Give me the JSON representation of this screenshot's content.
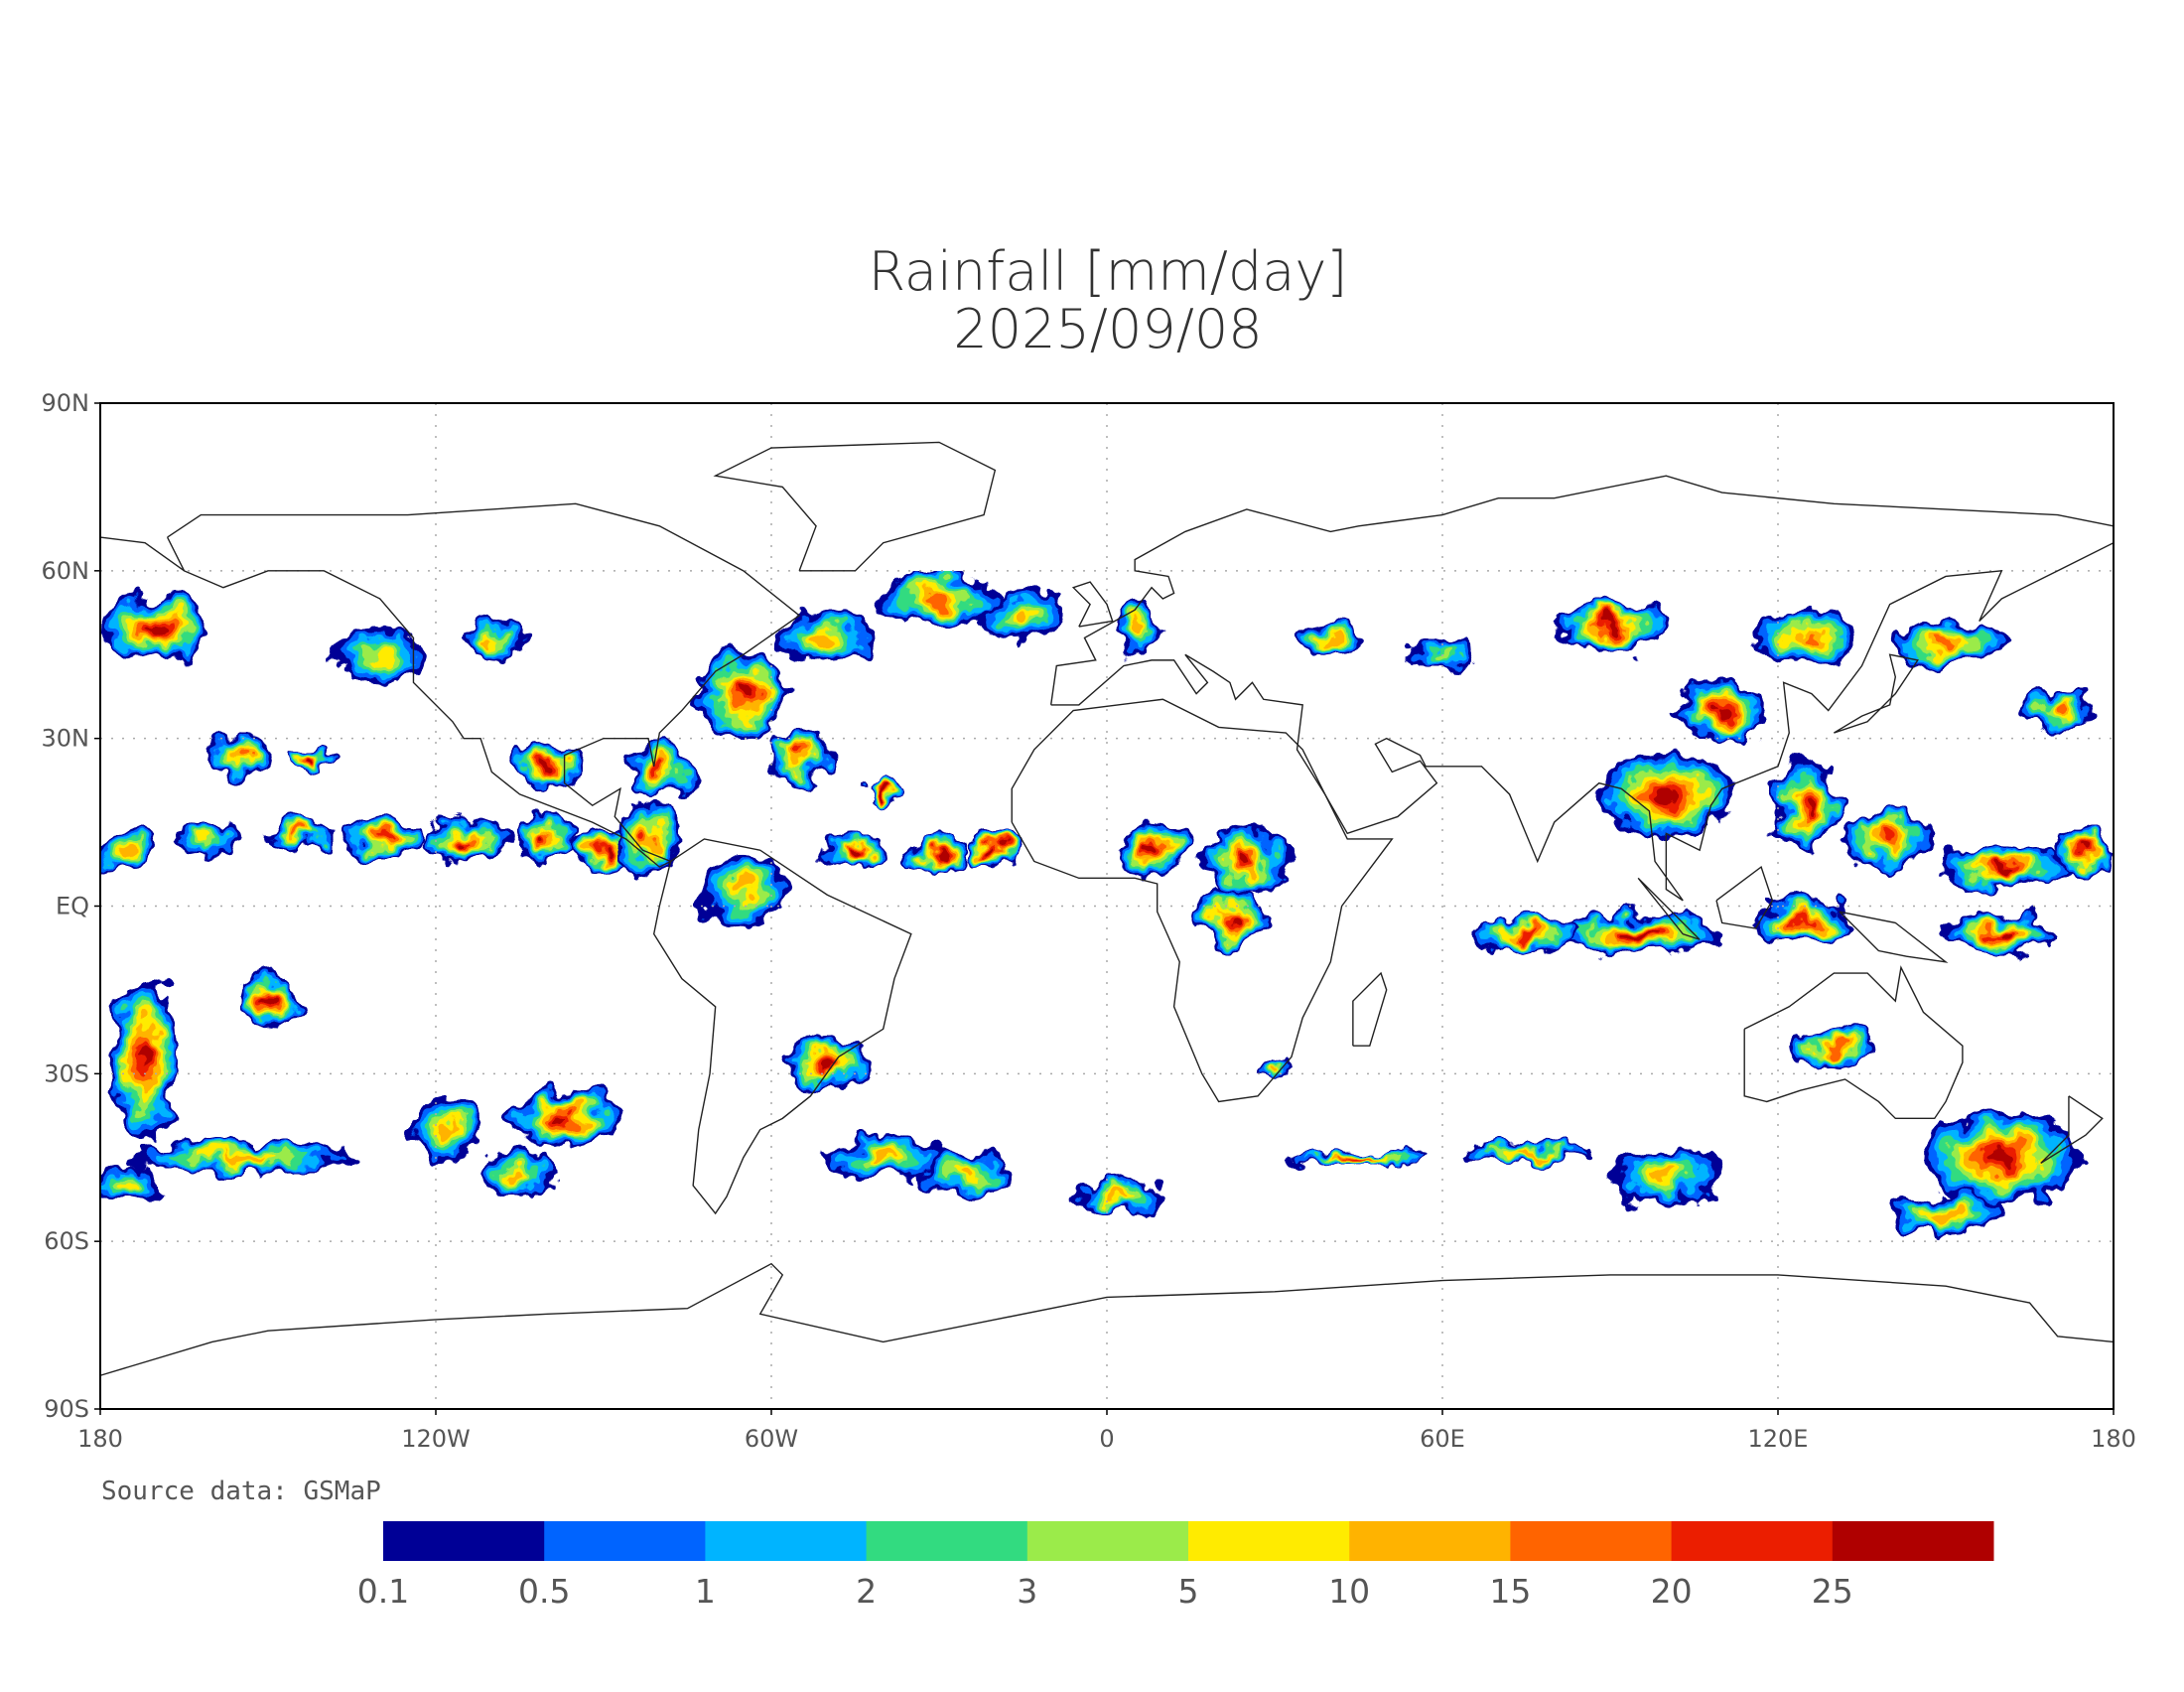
{
  "map": {
    "title": "Rainfall [mm/day]",
    "date": "2025/09/08",
    "xlim": [
      -180,
      180
    ],
    "ylim": [
      -90,
      90
    ],
    "xticks": [
      {
        "value": -180,
        "label": "180"
      },
      {
        "value": -120,
        "label": "120W"
      },
      {
        "value": -60,
        "label": "60W"
      },
      0,
      {
        "value": 60,
        "label": "60E"
      },
      {
        "value": 120,
        "label": "120E"
      },
      180
    ],
    "yticks": [
      {
        "value": 90,
        "label": "90N"
      },
      {
        "value": 60,
        "label": "60N"
      },
      {
        "value": 30,
        "label": "30N"
      },
      {
        "value": 0,
        "label": "EQ"
      },
      {
        "value": -30,
        "label": "30S"
      },
      {
        "value": -60,
        "label": "60S"
      },
      {
        "value": -90,
        "label": "90S"
      }
    ],
    "grid": true,
    "source": "Source data: GSMaP"
  },
  "colorbar": {
    "levels": [
      0.1,
      0.5,
      1,
      2,
      3,
      5,
      10,
      15,
      20,
      25
    ],
    "colors": [
      "#000096",
      "#0064ff",
      "#00b4ff",
      "#32db80",
      "#9beb4a",
      "#ffeb00",
      "#ffb300",
      "#ff6400",
      "#eb1e00",
      "#af0000"
    ]
  }
}
